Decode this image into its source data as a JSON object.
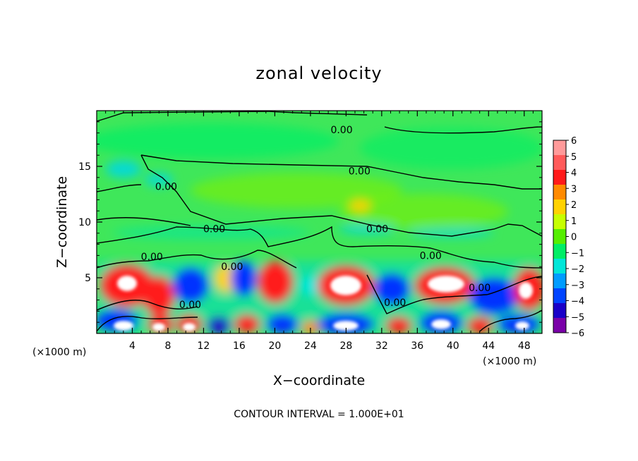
{
  "chart_data": {
    "type": "heatmap",
    "title": "zonal velocity",
    "xlabel": "X−coordinate",
    "ylabel": "Z−coordinate",
    "x_units_left": "(×1000 m)",
    "x_units_right": "(×1000 m)",
    "xlim": [
      0,
      50
    ],
    "ylim": [
      0,
      20
    ],
    "x_ticks": [
      4,
      8,
      12,
      16,
      20,
      24,
      28,
      32,
      36,
      40,
      44,
      48
    ],
    "y_ticks": [
      5,
      10,
      15
    ],
    "colorbar": {
      "levels": [
        6,
        5,
        4,
        3,
        2,
        1,
        0,
        -1,
        -2,
        -3,
        -4,
        -5,
        -6
      ],
      "labels": [
        "6",
        "5",
        "4",
        "3",
        "2",
        "1",
        "0",
        "−1",
        "−2",
        "−3",
        "−4",
        "−5",
        "−6"
      ],
      "colors": [
        "#ff9a9a",
        "#ff5a5a",
        "#ff1a1a",
        "#ff8a00",
        "#ffd200",
        "#c6ff00",
        "#55ee00",
        "#00ee66",
        "#00e6d8",
        "#009cff",
        "#0044ff",
        "#1a00c8",
        "#7a00a8"
      ]
    },
    "contour_labels": [
      {
        "text": "0.00",
        "x": 27.5,
        "z": 18.3
      },
      {
        "text": "0.00",
        "x": 29.5,
        "z": 14.6
      },
      {
        "text": "0.00",
        "x": 7.8,
        "z": 13.2
      },
      {
        "text": "0.00",
        "x": 13.2,
        "z": 9.4
      },
      {
        "text": "0.00",
        "x": 31.5,
        "z": 9.4
      },
      {
        "text": "0.00",
        "x": 6.2,
        "z": 6.9
      },
      {
        "text": "0.00",
        "x": 15.2,
        "z": 6.0
      },
      {
        "text": "0.00",
        "x": 37.5,
        "z": 7.0
      },
      {
        "text": "0.00",
        "x": 10.5,
        "z": 2.6
      },
      {
        "text": "0.00",
        "x": 33.5,
        "z": 2.8
      },
      {
        "text": "0.00",
        "x": 43.0,
        "z": 4.1
      }
    ],
    "contour_interval": "CONTOUR INTERVAL = 1.000E+01"
  }
}
